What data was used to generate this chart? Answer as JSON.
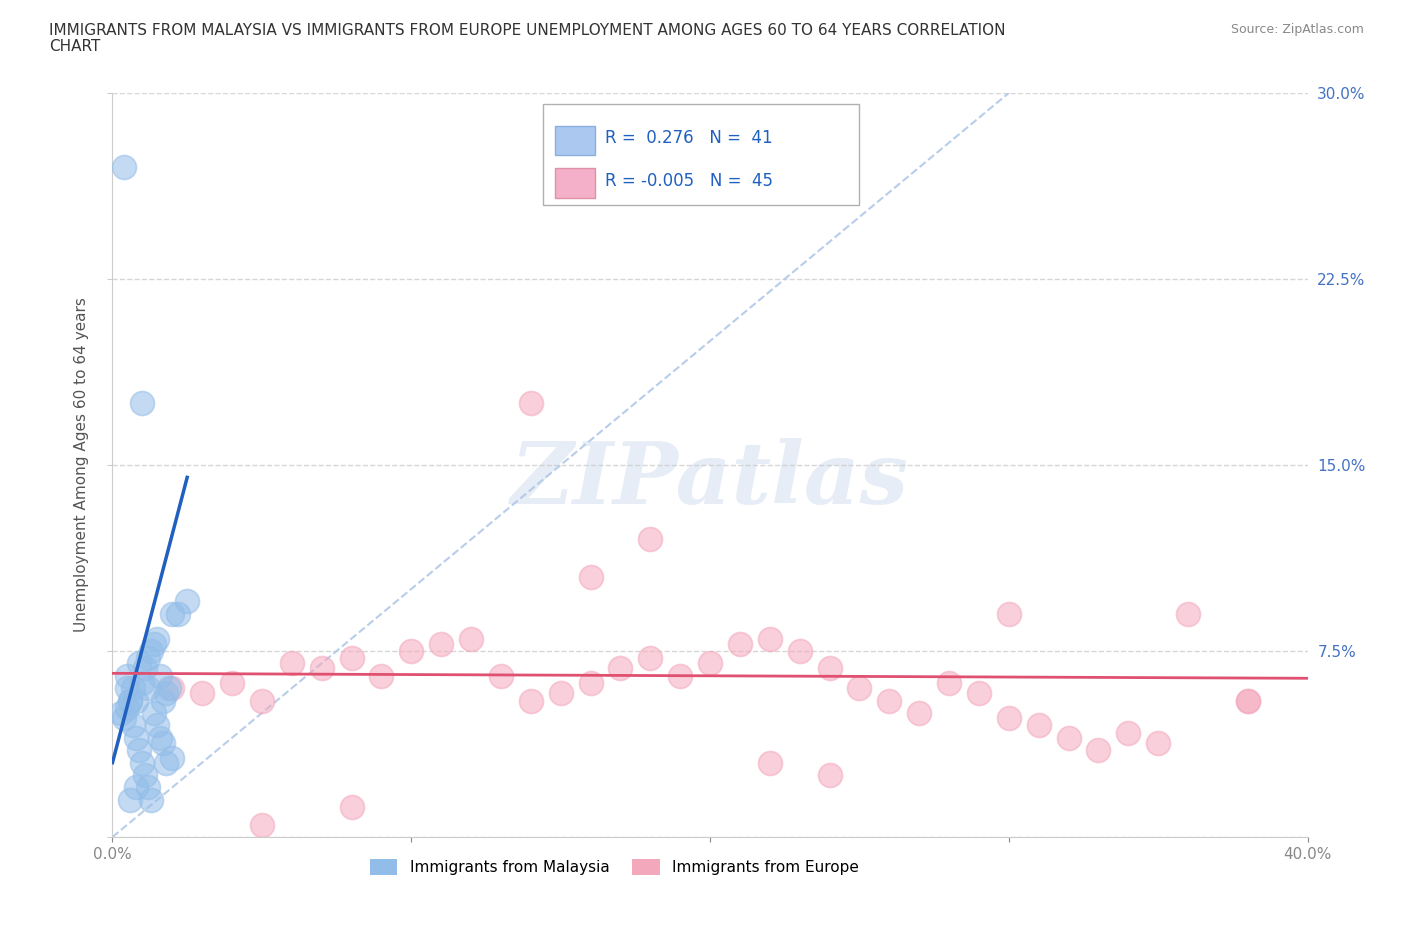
{
  "title_line1": "IMMIGRANTS FROM MALAYSIA VS IMMIGRANTS FROM EUROPE UNEMPLOYMENT AMONG AGES 60 TO 64 YEARS CORRELATION",
  "title_line2": "CHART",
  "source_text": "Source: ZipAtlas.com",
  "ylabel": "Unemployment Among Ages 60 to 64 years",
  "xlim": [
    0.0,
    0.4
  ],
  "ylim": [
    0.0,
    0.3
  ],
  "ytick_values": [
    0.0,
    0.075,
    0.15,
    0.225,
    0.3
  ],
  "ytick_labels_right": [
    "",
    "7.5%",
    "15.0%",
    "22.5%",
    "30.0%"
  ],
  "xtick_values": [
    0.0,
    0.1,
    0.2,
    0.3,
    0.4
  ],
  "xtick_labels": [
    "0.0%",
    "",
    "",
    "",
    "40.0%"
  ],
  "watermark_text": "ZIPatlas",
  "malaysia_color": "#92bde8",
  "europe_color": "#f4a8bc",
  "malaysia_label": "Immigrants from Malaysia",
  "europe_label": "Immigrants from Europe",
  "legend_R_malaysia": "R =  0.276   N =  41",
  "legend_R_europe": "R = -0.005   N =  45",
  "malaysia_scatter_x": [
    0.004,
    0.005,
    0.005,
    0.006,
    0.007,
    0.008,
    0.009,
    0.01,
    0.011,
    0.012,
    0.013,
    0.014,
    0.015,
    0.016,
    0.017,
    0.018,
    0.019,
    0.02,
    0.022,
    0.025,
    0.003,
    0.004,
    0.005,
    0.006,
    0.007,
    0.008,
    0.009,
    0.01,
    0.011,
    0.012,
    0.013,
    0.015,
    0.017,
    0.02,
    0.01,
    0.012,
    0.014,
    0.016,
    0.018,
    0.008,
    0.006
  ],
  "malaysia_scatter_y": [
    0.27,
    0.065,
    0.06,
    0.055,
    0.06,
    0.055,
    0.07,
    0.062,
    0.068,
    0.072,
    0.075,
    0.078,
    0.08,
    0.065,
    0.055,
    0.058,
    0.06,
    0.09,
    0.09,
    0.095,
    0.05,
    0.048,
    0.052,
    0.055,
    0.045,
    0.04,
    0.035,
    0.03,
    0.025,
    0.02,
    0.015,
    0.045,
    0.038,
    0.032,
    0.175,
    0.06,
    0.05,
    0.04,
    0.03,
    0.02,
    0.015
  ],
  "europe_scatter_x": [
    0.02,
    0.03,
    0.04,
    0.05,
    0.06,
    0.07,
    0.08,
    0.09,
    0.1,
    0.11,
    0.12,
    0.13,
    0.14,
    0.15,
    0.16,
    0.17,
    0.18,
    0.19,
    0.2,
    0.21,
    0.22,
    0.23,
    0.24,
    0.25,
    0.26,
    0.27,
    0.28,
    0.29,
    0.3,
    0.31,
    0.32,
    0.33,
    0.34,
    0.35,
    0.36,
    0.38,
    0.14,
    0.16,
    0.18,
    0.22,
    0.24,
    0.08,
    0.38,
    0.05,
    0.3
  ],
  "europe_scatter_y": [
    0.06,
    0.058,
    0.062,
    0.055,
    0.07,
    0.068,
    0.072,
    0.065,
    0.075,
    0.078,
    0.08,
    0.065,
    0.055,
    0.058,
    0.062,
    0.068,
    0.072,
    0.065,
    0.07,
    0.078,
    0.08,
    0.075,
    0.068,
    0.06,
    0.055,
    0.05,
    0.062,
    0.058,
    0.048,
    0.045,
    0.04,
    0.035,
    0.042,
    0.038,
    0.09,
    0.055,
    0.175,
    0.105,
    0.12,
    0.03,
    0.025,
    0.012,
    0.055,
    0.005,
    0.09
  ],
  "trend_blue_x0": 0.0,
  "trend_blue_x1": 0.025,
  "trend_blue_y0": 0.03,
  "trend_blue_y1": 0.145,
  "trend_pink_x0": 0.0,
  "trend_pink_x1": 0.4,
  "trend_pink_y0": 0.066,
  "trend_pink_y1": 0.064,
  "diag_line_x": [
    0.0,
    0.3
  ],
  "diag_line_y": [
    0.0,
    0.3
  ],
  "background_color": "#ffffff",
  "grid_color": "#cccccc",
  "right_label_color": "#4472c4",
  "title_color": "#333333",
  "source_color": "#888888"
}
